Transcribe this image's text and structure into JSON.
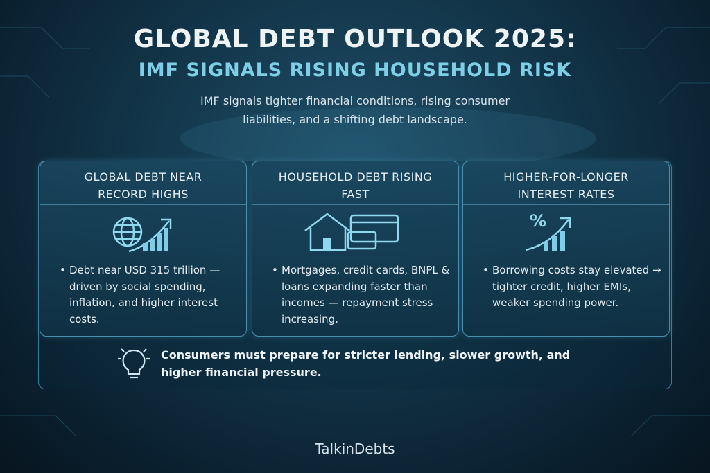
{
  "header": {
    "title": "GLOBAL DEBT OUTLOOK 2025:",
    "subtitle": "IMF SIGNALS RISING HOUSEHOLD RISK",
    "intro": "IMF signals tighter financial conditions, rising consumer liabilities, and a shifting debt landscape."
  },
  "cards": [
    {
      "title": "GLOBAL DEBT NEAR RECORD HIGHS",
      "text": "Debt near USD 315 trillion — driven by social spending, inflation, and higher interest costs."
    },
    {
      "title": "HOUSEHOLD DEBT RISING FAST",
      "text": "Mortgages, credit cards, BNPL & loans expanding faster than incomes — repayment stress increasing."
    },
    {
      "title": "HIGHER-FOR-LONGER INTEREST RATES",
      "text": "Borrowing costs stay elevated → tighter credit, higher EMIs, weaker spending power."
    }
  ],
  "note": "Consumers must prepare for stricter lending, slower growth, and higher financial pressure.",
  "brand": "TalkinDebts"
}
